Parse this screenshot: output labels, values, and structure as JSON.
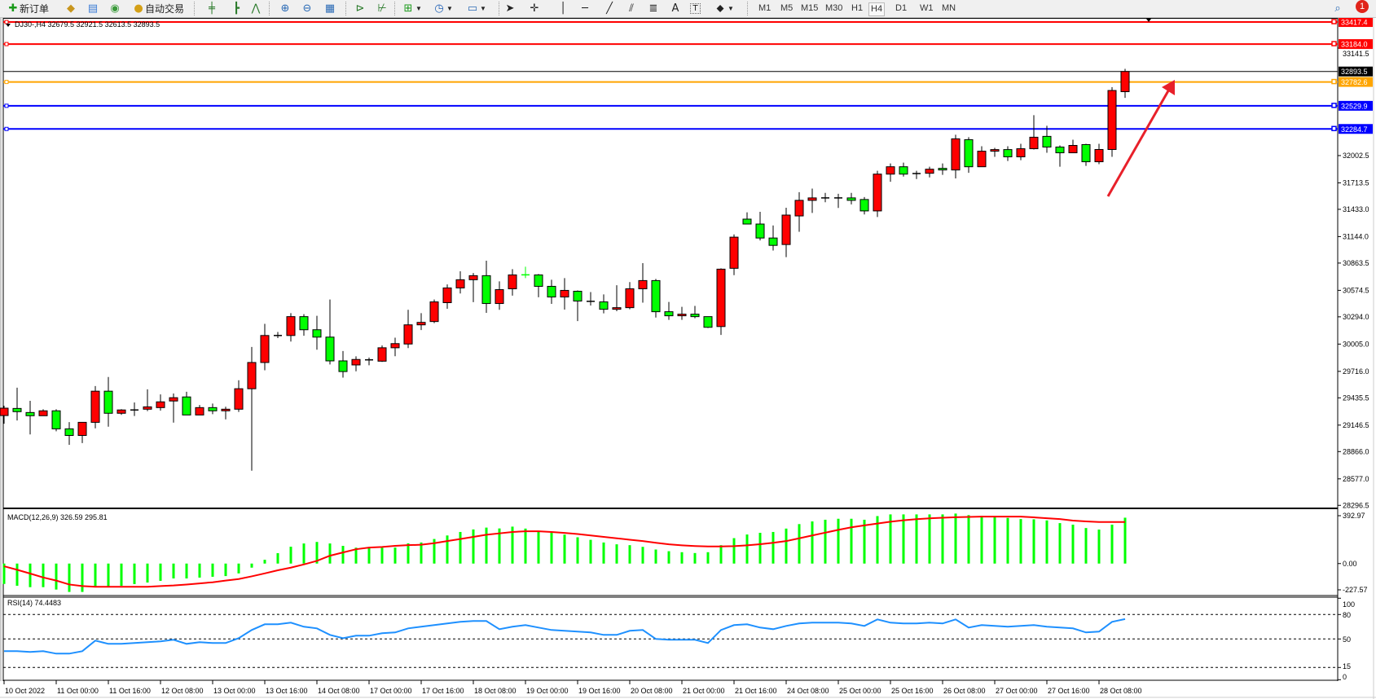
{
  "toolbar": {
    "new_order_label": "新订单",
    "auto_trading_label": "自动交易",
    "text_tool_label": "A",
    "timeframes": [
      "M1",
      "M5",
      "M15",
      "M30",
      "H1",
      "H4",
      "D1",
      "W1",
      "MN"
    ],
    "selected_timeframe": "H4",
    "notification_count": "1",
    "icons": [
      "new-order-icon",
      "gold-icon",
      "market-watch-icon",
      "signals-icon",
      "auto-trading-icon",
      "bar-chart-icon",
      "candlestick-icon",
      "line-chart-icon",
      "zoom-in-icon",
      "zoom-out-icon",
      "tile-windows-icon",
      "chart-shift-icon",
      "autoscroll-icon",
      "indicators-icon",
      "periods-icon",
      "templates-icon",
      "cursor-icon",
      "crosshair-icon",
      "vertical-line-icon",
      "horizontal-line-icon",
      "trendline-icon",
      "equidistant-channel-icon",
      "fibonacci-icon",
      "text-label-icon",
      "shapes-icon",
      "search-icon",
      "notification-icon"
    ]
  },
  "chart": {
    "header": "DJ30-,H4  32679.5 32921.5 32613.5 32893.5",
    "symbol": "DJ30-",
    "colors": {
      "bull": "#FF0000",
      "bear": "#00FF00",
      "macd_hist": "#00FF00",
      "macd_signal": "#FF0000",
      "rsi": "#1E90FF",
      "arrow": "#E8202A"
    },
    "price_ticks": [
      "33141.5",
      "32002.5",
      "31713.5",
      "31433.0",
      "31144.0",
      "30863.5",
      "30574.5",
      "30294.0",
      "30005.0",
      "29716.0",
      "29435.5",
      "29146.5",
      "28866.0",
      "28577.0",
      "28296.5"
    ],
    "price_lines": [
      {
        "price": "33417.4",
        "color": "#FF0000",
        "text_color": "#FFFFFF"
      },
      {
        "price": "33184.0",
        "color": "#FF0000",
        "text_color": "#FFFFFF"
      },
      {
        "price": "32893.5",
        "color": "#000000",
        "text_color": "#FFFFFF",
        "thin": true
      },
      {
        "price": "32782.6",
        "color": "#FFA500",
        "text_color": "#FFFFFF"
      },
      {
        "price": "32529.9",
        "color": "#0000FF",
        "text_color": "#FFFFFF"
      },
      {
        "price": "32284.7",
        "color": "#0000FF",
        "text_color": "#FFFFFF"
      }
    ],
    "macd": {
      "label": "MACD(12,26,9) 326.59 295.81",
      "axis": [
        "392.97",
        "0.00",
        "-227.57"
      ]
    },
    "rsi": {
      "label": "RSI(14) 74.4483",
      "axis": [
        "100",
        "80",
        "50",
        "15",
        "0"
      ],
      "levels": [
        80,
        50,
        15
      ]
    },
    "time_labels": [
      {
        "label": "10 Oct 2022",
        "bar": 0
      },
      {
        "label": "11 Oct 00:00",
        "bar": 4
      },
      {
        "label": "11 Oct 16:00",
        "bar": 8
      },
      {
        "label": "12 Oct 08:00",
        "bar": 12
      },
      {
        "label": "13 Oct 00:00",
        "bar": 16
      },
      {
        "label": "13 Oct 16:00",
        "bar": 20
      },
      {
        "label": "14 Oct 08:00",
        "bar": 24
      },
      {
        "label": "17 Oct 00:00",
        "bar": 28
      },
      {
        "label": "17 Oct 16:00",
        "bar": 32
      },
      {
        "label": "18 Oct 08:00",
        "bar": 36
      },
      {
        "label": "19 Oct 00:00",
        "bar": 40
      },
      {
        "label": "19 Oct 16:00",
        "bar": 44
      },
      {
        "label": "20 Oct 08:00",
        "bar": 48
      },
      {
        "label": "21 Oct 00:00",
        "bar": 52
      },
      {
        "label": "21 Oct 16:00",
        "bar": 56
      },
      {
        "label": "24 Oct 08:00",
        "bar": 60
      },
      {
        "label": "25 Oct 00:00",
        "bar": 64
      },
      {
        "label": "25 Oct 16:00",
        "bar": 68
      },
      {
        "label": "26 Oct 08:00",
        "bar": 72
      },
      {
        "label": "27 Oct 00:00",
        "bar": 76
      },
      {
        "label": "27 Oct 16:00",
        "bar": 80
      },
      {
        "label": "28 Oct 08:00",
        "bar": 84
      }
    ]
  },
  "chart_data": {
    "type": "candlestick",
    "ylim": [
      28273,
      33461
    ],
    "ohlc": [
      [
        29248,
        29352,
        29161,
        29326
      ],
      [
        29323,
        29543,
        29196,
        29289
      ],
      [
        29280,
        29404,
        29048,
        29246
      ],
      [
        29246,
        29314,
        29246,
        29298
      ],
      [
        29298,
        29314,
        29081,
        29107
      ],
      [
        29107,
        29178,
        28938,
        29037
      ],
      [
        29037,
        29176,
        28956,
        29176
      ],
      [
        29176,
        29560,
        29112,
        29506
      ],
      [
        29506,
        29656,
        29130,
        29272
      ],
      [
        29272,
        29315,
        29255,
        29307
      ],
      [
        29307,
        29387,
        29243,
        29307
      ],
      [
        29315,
        29526,
        29295,
        29340
      ],
      [
        29332,
        29472,
        29300,
        29393
      ],
      [
        29402,
        29482,
        29173,
        29437
      ],
      [
        29445,
        29500,
        29254,
        29254
      ],
      [
        29254,
        29360,
        29254,
        29332
      ],
      [
        29332,
        29375,
        29262,
        29298
      ],
      [
        29298,
        29341,
        29207,
        29315
      ],
      [
        29315,
        29622,
        29286,
        29532
      ],
      [
        29532,
        29975,
        28664,
        29810
      ],
      [
        29810,
        30220,
        29728,
        30096
      ],
      [
        30096,
        30133,
        30069,
        30096
      ],
      [
        30096,
        30333,
        30032,
        30296
      ],
      [
        30296,
        30322,
        30093,
        30157
      ],
      [
        30157,
        30305,
        29945,
        30079
      ],
      [
        30079,
        30478,
        29789,
        29827
      ],
      [
        29827,
        29931,
        29650,
        29714
      ],
      [
        29784,
        29875,
        29717,
        29842
      ],
      [
        29838,
        29862,
        29780,
        29838
      ],
      [
        29824,
        29991,
        29816,
        29966
      ],
      [
        29966,
        30073,
        29876,
        30010
      ],
      [
        30006,
        30368,
        29963,
        30209
      ],
      [
        30209,
        30333,
        30154,
        30235
      ],
      [
        30244,
        30478,
        30227,
        30452
      ],
      [
        30444,
        30637,
        30379,
        30600
      ],
      [
        30600,
        30776,
        30541,
        30687
      ],
      [
        30687,
        30758,
        30449,
        30730
      ],
      [
        30730,
        30889,
        30336,
        30435
      ],
      [
        30435,
        30669,
        30369,
        30582
      ],
      [
        30591,
        30799,
        30518,
        30738
      ],
      [
        30741,
        30825,
        30704,
        30740
      ],
      [
        30738,
        30747,
        30501,
        30617
      ],
      [
        30617,
        30687,
        30431,
        30504
      ],
      [
        30504,
        30704,
        30371,
        30574
      ],
      [
        30565,
        30574,
        30249,
        30461
      ],
      [
        30458,
        30556,
        30414,
        30458
      ],
      [
        30452,
        30531,
        30331,
        30374
      ],
      [
        30374,
        30629,
        30353,
        30391
      ],
      [
        30391,
        30662,
        30374,
        30591
      ],
      [
        30591,
        30863,
        30444,
        30678
      ],
      [
        30678,
        30695,
        30287,
        30348
      ],
      [
        30348,
        30452,
        30262,
        30305
      ],
      [
        30305,
        30400,
        30262,
        30322
      ],
      [
        30322,
        30409,
        30279,
        30296
      ],
      [
        30296,
        30296,
        30175,
        30183
      ],
      [
        30191,
        30808,
        30102,
        30799
      ],
      [
        30808,
        31167,
        30735,
        31138
      ],
      [
        31329,
        31401,
        31277,
        31277
      ],
      [
        31277,
        31407,
        31103,
        31129
      ],
      [
        31129,
        31262,
        30996,
        31051
      ],
      [
        31060,
        31450,
        30926,
        31372
      ],
      [
        31363,
        31615,
        31195,
        31528
      ],
      [
        31528,
        31653,
        31395,
        31554
      ],
      [
        31554,
        31607,
        31508,
        31554
      ],
      [
        31554,
        31598,
        31447,
        31554
      ],
      [
        31554,
        31607,
        31485,
        31528
      ],
      [
        31537,
        31563,
        31378,
        31416
      ],
      [
        31416,
        31841,
        31352,
        31806
      ],
      [
        31806,
        31919,
        31725,
        31884
      ],
      [
        31884,
        31928,
        31780,
        31806
      ],
      [
        31812,
        31841,
        31754,
        31812
      ],
      [
        31815,
        31884,
        31771,
        31858
      ],
      [
        31867,
        31919,
        31798,
        31850
      ],
      [
        31850,
        32223,
        31760,
        32180
      ],
      [
        32171,
        32197,
        31820,
        31884
      ],
      [
        31884,
        32101,
        31884,
        32049
      ],
      [
        32049,
        32084,
        31989,
        32066
      ],
      [
        32066,
        32101,
        31945,
        31989
      ],
      [
        31989,
        32127,
        31954,
        32075
      ],
      [
        32075,
        32431,
        32067,
        32197
      ],
      [
        32206,
        32318,
        32032,
        32093
      ],
      [
        32093,
        32110,
        31884,
        32032
      ],
      [
        32032,
        32171,
        32032,
        32110
      ],
      [
        32119,
        32127,
        31893,
        31937
      ],
      [
        31937,
        32127,
        31911,
        32067
      ],
      [
        32067,
        32727,
        31989,
        32692
      ],
      [
        32679.5,
        32921.5,
        32613.5,
        32893.5
      ]
    ],
    "macd_ylim": [
      -227.57,
      392.97
    ],
    "macd_hist": [
      -145,
      -158,
      -168,
      -168,
      -185,
      -202,
      -202,
      -164,
      -164,
      -158,
      -146,
      -135,
      -123,
      -106,
      -106,
      -100,
      -94,
      -89,
      -70,
      -29,
      27,
      74,
      120,
      143,
      154,
      143,
      126,
      113,
      113,
      113,
      114,
      144,
      150,
      175,
      200,
      225,
      243,
      256,
      250,
      263,
      249,
      231,
      219,
      206,
      187,
      169,
      150,
      137,
      131,
      119,
      100,
      88,
      81,
      75,
      81,
      131,
      181,
      207,
      219,
      225,
      249,
      281,
      300,
      312,
      319,
      319,
      312,
      338,
      350,
      350,
      350,
      350,
      350,
      356,
      345,
      340,
      335,
      325,
      317,
      315,
      307,
      288,
      277,
      253,
      242,
      277,
      326.59
    ],
    "macd_signal": [
      -19,
      -44,
      -71,
      -99,
      -121,
      -149,
      -160,
      -165,
      -165,
      -165,
      -165,
      -165,
      -160,
      -156,
      -149,
      -141,
      -133,
      -121,
      -110,
      -91,
      -70,
      -48,
      -29,
      -6,
      19,
      56,
      79,
      102,
      114,
      118,
      126,
      131,
      134,
      145,
      160,
      175,
      190,
      205,
      215,
      225,
      230,
      230,
      225,
      218,
      210,
      200,
      190,
      180,
      170,
      160,
      148,
      137,
      130,
      125,
      122,
      122,
      124,
      130,
      138,
      148,
      160,
      180,
      200,
      220,
      240,
      258,
      272,
      285,
      298,
      308,
      316,
      322,
      326,
      330,
      332,
      334,
      334,
      334,
      334,
      329,
      323,
      317,
      306,
      300,
      296,
      296,
      295.81
    ],
    "rsi": [
      35,
      35,
      34,
      35,
      32,
      32,
      35,
      48,
      44,
      44,
      45,
      46,
      47,
      49,
      44,
      46,
      45,
      45,
      51,
      61,
      68,
      68,
      70,
      65,
      63,
      55,
      51,
      54,
      54,
      57,
      58,
      63,
      65,
      67,
      69,
      71,
      72,
      72,
      62,
      65,
      67,
      64,
      61,
      60,
      59,
      58,
      55,
      55,
      60,
      61,
      50,
      49,
      49,
      49,
      45,
      61,
      67,
      68,
      64,
      62,
      66,
      69,
      70,
      70,
      70,
      69,
      66,
      74,
      70,
      69,
      69,
      70,
      69,
      74,
      64,
      67,
      66,
      65,
      66,
      67,
      65,
      64,
      63,
      58,
      59,
      71,
      74.4483
    ]
  }
}
